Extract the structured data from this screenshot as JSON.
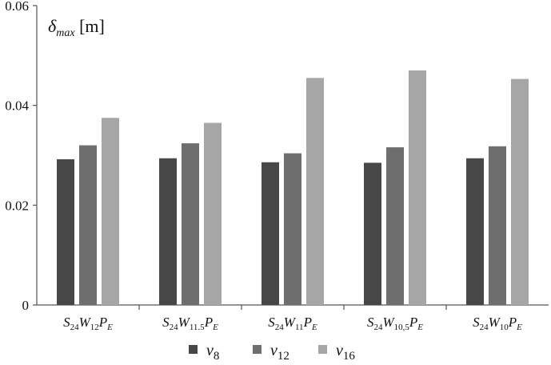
{
  "chart_data": {
    "type": "bar",
    "ylabel": {
      "symbol": "δ",
      "sub": "max",
      "unit": "[m]"
    },
    "ylim": [
      0,
      0.06
    ],
    "yticks": [
      "0",
      "0.02",
      "0.04",
      "0.06"
    ],
    "grid": false,
    "legend_position": "bottom",
    "categories": [
      {
        "s": "S",
        "s_sub": "24",
        "w": "W",
        "w_sub": "12",
        "p": "P",
        "p_sub": "E"
      },
      {
        "s": "S",
        "s_sub": "24",
        "w": "W",
        "w_sub": "11.5",
        "p": "P",
        "p_sub": "E"
      },
      {
        "s": "S",
        "s_sub": "24",
        "w": "W",
        "w_sub": "11",
        "p": "P",
        "p_sub": "E"
      },
      {
        "s": "S",
        "s_sub": "24",
        "w": "W",
        "w_sub": "10,5",
        "p": "P",
        "p_sub": "E"
      },
      {
        "s": "S",
        "s_sub": "24",
        "w": "W",
        "w_sub": "10",
        "p": "P",
        "p_sub": "E"
      }
    ],
    "series": [
      {
        "name": "v",
        "name_sub": "8",
        "color": "#474747",
        "values": [
          0.0292,
          0.0294,
          0.0286,
          0.0285,
          0.0294
        ]
      },
      {
        "name": "v",
        "name_sub": "12",
        "color": "#6e6e6e",
        "values": [
          0.032,
          0.0324,
          0.0304,
          0.0316,
          0.0318
        ]
      },
      {
        "name": "v",
        "name_sub": "16",
        "color": "#a6a6a6",
        "values": [
          0.0375,
          0.0365,
          0.0455,
          0.047,
          0.0453
        ]
      }
    ]
  }
}
